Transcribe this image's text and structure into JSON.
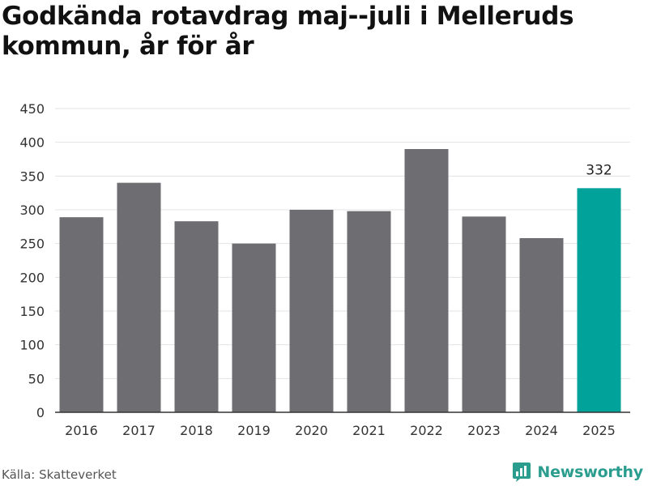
{
  "title": "Godkända rotavdrag maj--juli i Melleruds kommun, år för år",
  "source": "Källa: Skatteverket",
  "brand": {
    "name": "Newsworthy",
    "icon": "bar-chart-logo-icon",
    "color": "#2b9d8f"
  },
  "colors": {
    "bar": "#6e6d72",
    "highlight": "#00a29a",
    "grid": "#e3e3e3",
    "axis": "#333333"
  },
  "chart_data": {
    "type": "bar",
    "title": "Godkända rotavdrag maj--juli i Melleruds kommun, år för år",
    "xlabel": "",
    "ylabel": "",
    "categories": [
      "2016",
      "2017",
      "2018",
      "2019",
      "2020",
      "2021",
      "2022",
      "2023",
      "2024",
      "2025"
    ],
    "values": [
      289,
      340,
      283,
      250,
      300,
      298,
      390,
      290,
      258,
      332
    ],
    "highlight_index": 9,
    "data_labels": [
      {
        "index": 9,
        "text": "332"
      }
    ],
    "ylim": [
      0,
      450
    ],
    "yticks": [
      0,
      50,
      100,
      150,
      200,
      250,
      300,
      350,
      400,
      450
    ],
    "grid": true,
    "legend": "none"
  }
}
